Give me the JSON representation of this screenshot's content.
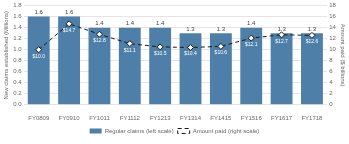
{
  "chart_data": {
    "type": "bar",
    "categories": [
      "FY0809",
      "FY0910",
      "FY1011",
      "FY1112",
      "FY1213",
      "FY1314",
      "FY1415",
      "FY1516",
      "FY1617",
      "FY1718"
    ],
    "series": [
      {
        "name": "Regular claims (left scale)",
        "type": "bar",
        "color": "#4d7fa8",
        "values": [
          1.6,
          1.6,
          1.4,
          1.4,
          1.4,
          1.3,
          1.3,
          1.4,
          1.3,
          1.3
        ]
      },
      {
        "name": "Amount paid (right scale)",
        "type": "line",
        "axis": "y2",
        "color": "#1a1a1a",
        "marker": "diamond",
        "line_style": "dashed",
        "values": [
          10.0,
          14.7,
          12.8,
          11.1,
          10.5,
          10.4,
          10.6,
          12.1,
          12.7,
          12.6
        ],
        "value_labels": [
          "$10.0",
          "$14.7",
          "$12.8",
          "$11.1",
          "$10.5",
          "$10.4",
          "$10.6",
          "$12.1",
          "$12.7",
          "$12.6"
        ]
      }
    ],
    "ylabel": "New claims established (Millions)",
    "y2label": "Amount paid ($ billions)",
    "ylim": [
      0.0,
      1.8
    ],
    "yticks": [
      {
        "value": 0.0,
        "label": "0.0"
      },
      0.2,
      0.4,
      0.6,
      0.8,
      {
        "value": 1.0,
        "label": "1.0"
      },
      1.2,
      1.4,
      1.6,
      1.8
    ],
    "y2lim": [
      0,
      18
    ],
    "y2ticks": [
      0,
      2,
      4,
      6,
      8,
      10,
      12,
      14,
      16,
      18
    ],
    "grid": true,
    "legend": "bottom",
    "data_labels": true
  }
}
